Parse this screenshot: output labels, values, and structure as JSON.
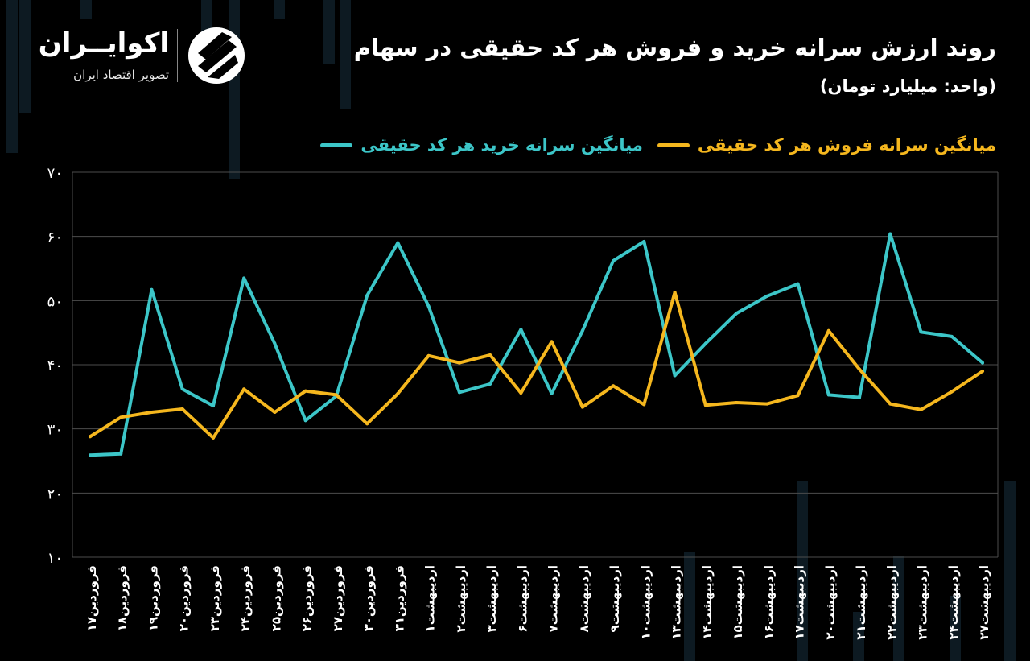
{
  "header": {
    "title": "روند ارزش سرانه خرید و فروش هر کد حقیقی در سهام",
    "unit": "(واحد: میلیارد تومان)"
  },
  "logo": {
    "name": "اکوایــران",
    "tagline": "تصویر اقتصاد ایران"
  },
  "colors": {
    "buy": "#3cc6c8",
    "sell": "#f5b71e",
    "grid": "#4d4d4d",
    "background": "#000000"
  },
  "chart_data": {
    "type": "line",
    "ylim": [
      10,
      70
    ],
    "yticks": [
      "۱۰",
      "۲۰",
      "۳۰",
      "۴۰",
      "۵۰",
      "۶۰",
      "۷۰"
    ],
    "ytick_values": [
      10,
      20,
      30,
      40,
      50,
      60,
      70
    ],
    "grid": true,
    "legend_position": "top-right",
    "categories": [
      "فروردین۱۷",
      "فروردین۱۸",
      "فروردین۱۹",
      "فروردین۲۰",
      "فروردین۲۳",
      "فروردین۲۴",
      "فروردین۲۵",
      "فروردین۲۶",
      "فروردین۲۷",
      "فروردین۳۰",
      "فروردین۳۱",
      "اردیبهشت۱",
      "اردیبهشت۲",
      "اردیبهشت۳",
      "اردیبهشت۶",
      "اردیبهشت۷",
      "اردیبهشت۸",
      "اردیبهشت۹",
      "اردیبهشت۱۰",
      "اردیبهشت۱۳",
      "اردیبهشت۱۴",
      "اردیبهشت۱۵",
      "اردیبهشت۱۶",
      "اردیبهشت۱۷",
      "اردیبهشت۲۰",
      "اردیبهشت۲۱",
      "اردیبهشت۲۲",
      "اردیبهشت۲۳",
      "اردیبهشت۲۴",
      "اردیبهشت۲۷"
    ],
    "series": [
      {
        "name": "میانگین سرانه خرید هر کد حقیقی",
        "key": "buy",
        "values": [
          25.9,
          26.1,
          51.7,
          36.2,
          33.6,
          53.5,
          43.3,
          31.3,
          35.1,
          50.8,
          59.0,
          49.1,
          35.7,
          37.0,
          45.5,
          35.5,
          45.3,
          56.2,
          59.2,
          38.3,
          43.3,
          48.0,
          50.7,
          52.6,
          35.3,
          34.9,
          60.4,
          45.1,
          44.4,
          40.3
        ]
      },
      {
        "name": "میانگین سرانه فروش هر کد حقیقی",
        "key": "sell",
        "values": [
          28.8,
          31.8,
          32.6,
          33.1,
          28.6,
          36.2,
          32.6,
          35.9,
          35.3,
          30.8,
          35.5,
          41.4,
          40.3,
          41.5,
          35.6,
          43.6,
          33.4,
          36.7,
          33.8,
          51.3,
          33.7,
          34.1,
          33.9,
          35.2,
          45.3,
          39.3,
          33.9,
          33.0,
          35.8,
          39.0
        ]
      }
    ]
  }
}
